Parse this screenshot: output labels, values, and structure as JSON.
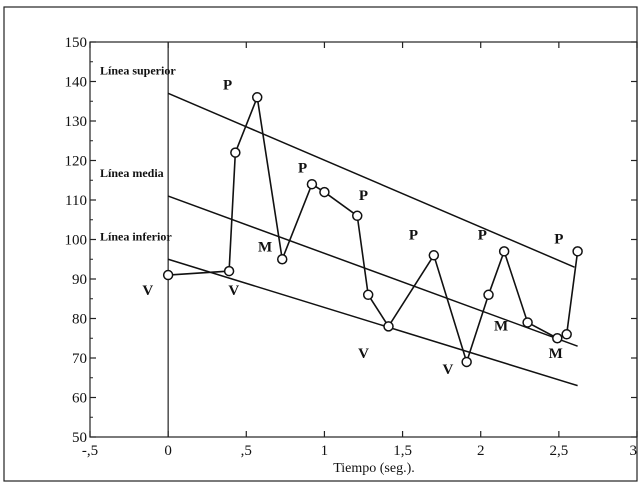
{
  "chart_data": {
    "type": "line",
    "xlabel": "Tiempo (seg.).",
    "ylabel": "",
    "xlim": [
      -0.5,
      3
    ],
    "ylim": [
      50,
      150
    ],
    "x_ticks": [
      -0.5,
      0,
      0.5,
      1,
      1.5,
      2,
      2.5,
      3
    ],
    "x_tick_labels": [
      "-,5",
      "0",
      ",5",
      "1",
      "1,5",
      "2",
      "2,5",
      "3"
    ],
    "y_ticks": [
      50,
      60,
      70,
      80,
      90,
      100,
      110,
      120,
      130,
      140,
      150
    ],
    "y_tick_labels": [
      "50",
      "60",
      "70",
      "80",
      "90",
      "100",
      "110",
      "120",
      "130",
      "140",
      "150"
    ],
    "grid": false,
    "vertical_reference_x": 0,
    "series": [
      {
        "x": [
          0,
          0.39,
          0.43,
          0.57,
          0.73,
          0.92,
          1.0,
          1.21,
          1.28,
          1.41,
          1.7,
          1.91,
          2.05,
          2.15,
          2.3,
          2.49,
          2.55,
          2.62
        ],
        "y": [
          91,
          92,
          122,
          136,
          95,
          114,
          112,
          106,
          86,
          78,
          96,
          69,
          86,
          97,
          79,
          75,
          76,
          97
        ]
      }
    ],
    "lines": [
      {
        "label": "Línea superior",
        "x": [
          0,
          2.6
        ],
        "y": [
          137,
          93
        ]
      },
      {
        "label": "Línea media",
        "x": [
          0,
          2.62
        ],
        "y": [
          111,
          73
        ]
      },
      {
        "label": "Línea inferior",
        "x": [
          0,
          2.62
        ],
        "y": [
          95,
          63
        ]
      }
    ],
    "annotations": [
      {
        "text": "P",
        "x": 0.38,
        "y": 138
      },
      {
        "text": "P",
        "x": 0.86,
        "y": 117
      },
      {
        "text": "P",
        "x": 1.25,
        "y": 110
      },
      {
        "text": "P",
        "x": 1.57,
        "y": 100
      },
      {
        "text": "P",
        "x": 2.01,
        "y": 100
      },
      {
        "text": "P",
        "x": 2.5,
        "y": 99
      },
      {
        "text": "M",
        "x": 0.62,
        "y": 97
      },
      {
        "text": "M",
        "x": 2.13,
        "y": 77
      },
      {
        "text": "M",
        "x": 2.48,
        "y": 70
      },
      {
        "text": "V",
        "x": -0.13,
        "y": 86
      },
      {
        "text": "V",
        "x": 0.42,
        "y": 86
      },
      {
        "text": "V",
        "x": 1.25,
        "y": 70
      },
      {
        "text": "V",
        "x": 1.79,
        "y": 66
      }
    ]
  }
}
